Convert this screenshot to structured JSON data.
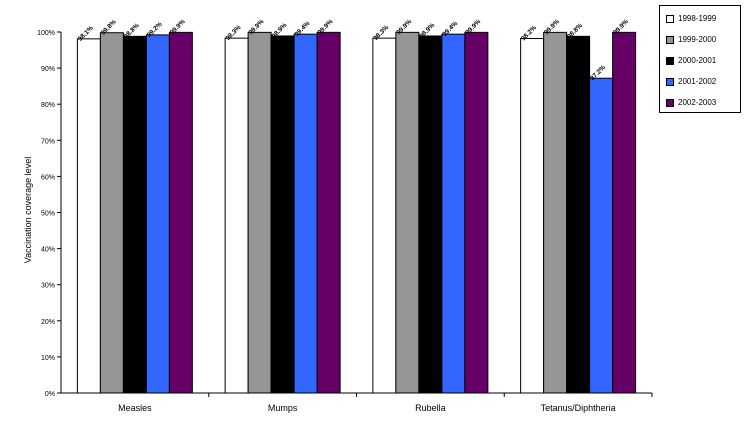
{
  "chart_data": {
    "type": "bar",
    "title": "",
    "xlabel": "",
    "ylabel": "Vaccination coverage level",
    "ylim": [
      0,
      100
    ],
    "yticks": [
      "0%",
      "10%",
      "20%",
      "30%",
      "40%",
      "50%",
      "60%",
      "70%",
      "80%",
      "90%",
      "100%"
    ],
    "grid": false,
    "legend_position": "top-right",
    "categories": [
      "Measles",
      "Mumps",
      "Rubella",
      "Tetanus/Diphtheria"
    ],
    "series": [
      {
        "name": "1998-1999",
        "color": "#ffffff",
        "values": [
          98.1,
          98.3,
          98.3,
          98.2
        ],
        "labels": [
          "98.1%",
          "98.3%",
          "98.3%",
          "98.2%"
        ]
      },
      {
        "name": "1999-2000",
        "color": "#969696",
        "values": [
          99.8,
          99.9,
          99.9,
          99.9
        ],
        "labels": [
          "99.8%",
          "99.9%",
          "99.9%",
          "99.9%"
        ]
      },
      {
        "name": "2000-2001",
        "color": "#000000",
        "values": [
          98.8,
          98.9,
          98.9,
          98.8
        ],
        "labels": [
          "98.8%",
          "98.9%",
          "98.9%",
          "98.8%"
        ]
      },
      {
        "name": "2001-2002",
        "color": "#3366ff",
        "values": [
          99.2,
          99.4,
          99.4,
          87.2
        ],
        "labels": [
          "99.2%",
          "99.4%",
          "99.4%",
          "87.2%"
        ]
      },
      {
        "name": "2002-2003",
        "color": "#660066",
        "values": [
          99.9,
          99.9,
          99.9,
          99.9
        ],
        "labels": [
          "99.9%",
          "99.9%",
          "99.9%",
          "99.9%"
        ]
      }
    ]
  }
}
